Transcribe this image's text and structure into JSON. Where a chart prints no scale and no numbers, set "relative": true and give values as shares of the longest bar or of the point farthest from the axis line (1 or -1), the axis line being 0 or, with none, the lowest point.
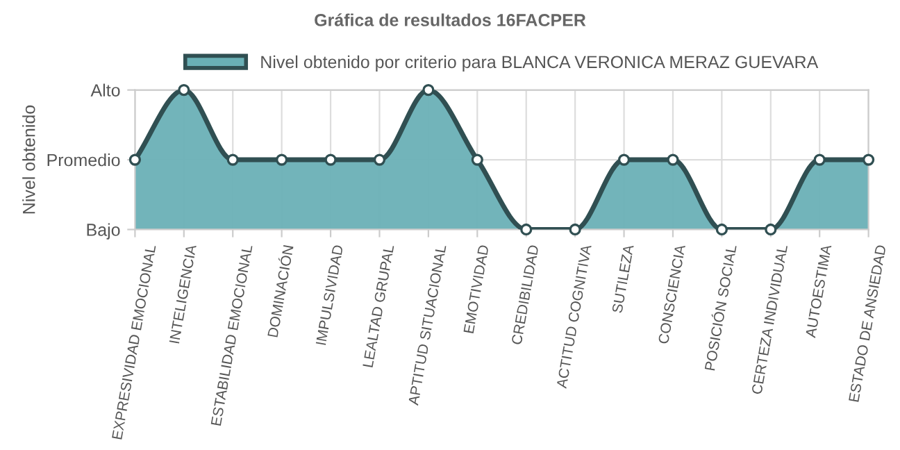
{
  "chart_data": {
    "type": "area",
    "title": "Gráfica de resultados 16FACPER",
    "ylabel": "Nivel obtenido",
    "categories": [
      "EXPRESIVIDAD EMOCIONAL",
      "INTELIGENCIA",
      "ESTABILIDAD EMOCIONAL",
      "DOMINACIÓN",
      "IMPULSIVIDAD",
      "LEALTAD GRUPAL",
      "APTITUD SITUACIONAL",
      "EMOTIVIDAD",
      "CREDIBILIDAD",
      "ACTITUD COGNITIVA",
      "SUTILEZA",
      "CONSCIENCIA",
      "POSICIÓN SOCIAL",
      "CERTEZA INDIVIDUAL",
      "AUTOESTIMA",
      "ESTADO DE ANSIEDAD"
    ],
    "series": [
      {
        "name": "Nivel obtenido por criterio para BLANCA VERONICA MERAZ GUEVARA",
        "color": "#6ab0b6",
        "values": [
          0.5,
          1,
          0.5,
          0.5,
          0.5,
          0.5,
          1,
          0.5,
          0,
          0,
          0.5,
          0.5,
          0,
          0,
          0.5,
          0.5
        ]
      }
    ],
    "relative": true,
    "y_categories": [
      "Alto",
      "Promedio",
      "Bajo"
    ],
    "grid": true,
    "legend": "top",
    "marker": "circle",
    "line_style": "solid"
  }
}
